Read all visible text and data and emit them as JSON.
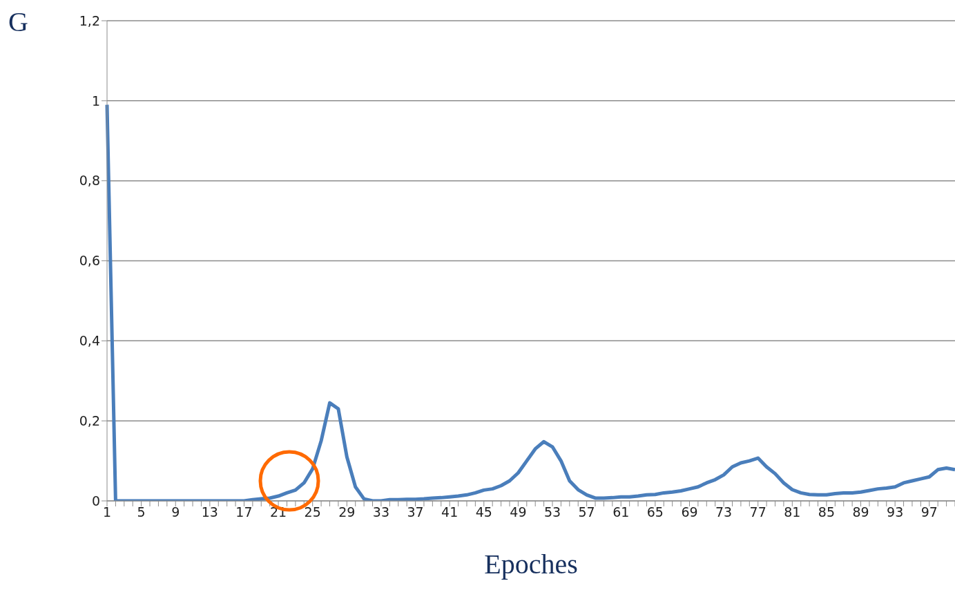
{
  "chart_data": {
    "type": "line",
    "xlabel": "Epoches",
    "ylabel": "G",
    "categories": [
      "1",
      null,
      null,
      null,
      "5",
      null,
      null,
      null,
      "9",
      null,
      null,
      null,
      "13",
      null,
      null,
      null,
      "17",
      null,
      null,
      null,
      "21",
      null,
      null,
      null,
      "25",
      null,
      null,
      null,
      "29",
      null,
      null,
      null,
      "33",
      null,
      null,
      null,
      "37",
      null,
      null,
      null,
      "41",
      null,
      null,
      null,
      "45",
      null,
      null,
      null,
      "49",
      null,
      null,
      null,
      "53",
      null,
      null,
      null,
      "57",
      null,
      null,
      null,
      "61",
      null,
      null,
      null,
      "65",
      null,
      null,
      null,
      "69",
      null,
      null,
      null,
      "73",
      null,
      null,
      null,
      "77",
      null,
      null,
      null,
      "81",
      null,
      null,
      null,
      "85",
      null,
      null,
      null,
      "89",
      null,
      null,
      null,
      "93",
      null,
      null,
      null,
      "97",
      null,
      null,
      null
    ],
    "series": [
      {
        "color": "#4a7ebb",
        "values": [
          0.99,
          0,
          0,
          0,
          0,
          0,
          0,
          0,
          0,
          0,
          0,
          0,
          0,
          0,
          0,
          0,
          0,
          0.003,
          0.005,
          0.007,
          0.012,
          0.02,
          0.027,
          0.045,
          0.08,
          0.15,
          0.245,
          0.23,
          0.11,
          0.035,
          0.005,
          0,
          0,
          0.003,
          0.003,
          0.004,
          0.004,
          0.005,
          0.007,
          0.008,
          0.01,
          0.012,
          0.015,
          0.02,
          0.027,
          0.03,
          0.038,
          0.05,
          0.07,
          0.1,
          0.13,
          0.148,
          0.135,
          0.1,
          0.05,
          0.028,
          0.015,
          0.007,
          0.007,
          0.008,
          0.01,
          0.01,
          0.012,
          0.015,
          0.016,
          0.02,
          0.022,
          0.025,
          0.03,
          0.035,
          0.045,
          0.053,
          0.065,
          0.085,
          0.095,
          0.1,
          0.107,
          0.085,
          0.068,
          0.045,
          0.028,
          0.02,
          0.016,
          0.015,
          0.015,
          0.018,
          0.02,
          0.02,
          0.022,
          0.026,
          0.03,
          0.032,
          0.035,
          0.045,
          0.05,
          0.055,
          0.06,
          0.078,
          0.082,
          0.078
        ]
      }
    ],
    "ylim": [
      0,
      1.2
    ],
    "yticks": [
      0,
      {
        "value": 0.2,
        "label": "0,2"
      },
      {
        "value": 0.4,
        "label": "0,4"
      },
      {
        "value": 0.6,
        "label": "0,6"
      },
      {
        "value": 0.8,
        "label": "0,8"
      },
      1,
      {
        "value": 1.2,
        "label": "1,2"
      }
    ],
    "grid": "y"
  }
}
